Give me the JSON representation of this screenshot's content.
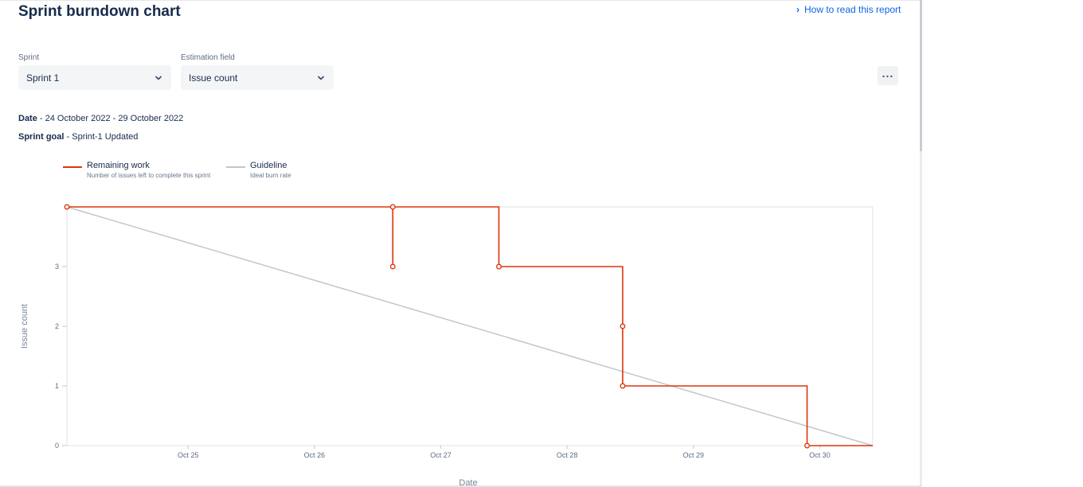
{
  "header": {
    "title": "Sprint burndown chart",
    "help_link": "How to read this report"
  },
  "filters": {
    "sprint_label": "Sprint",
    "sprint_value": "Sprint 1",
    "estimation_label": "Estimation field",
    "estimation_value": "Issue count",
    "more_icon": "more-horizontal-icon"
  },
  "meta": {
    "date_label": "Date",
    "date_value": "24 October 2022 - 29 October 2022",
    "goal_label": "Sprint goal",
    "goal_value": "Sprint-1 Updated"
  },
  "legend": [
    {
      "name": "Remaining work",
      "sub": "Number of issues left to complete this sprint",
      "color": "#de350b"
    },
    {
      "name": "Guideline",
      "sub": "Ideal burn rate",
      "color": "#c1c7d0"
    }
  ],
  "chart_data": {
    "type": "line",
    "xlabel": "Date",
    "ylabel": "Issue count",
    "x_ticks": [
      "Oct 25",
      "Oct 26",
      "Oct 27",
      "Oct 28",
      "Oct 29",
      "Oct 30"
    ],
    "y_ticks": [
      0,
      1,
      2,
      3
    ],
    "xlim": [
      24.04,
      30.42
    ],
    "ylim": [
      0,
      4
    ],
    "grid": false,
    "legend_position": "top-left",
    "series": [
      {
        "name": "Remaining work",
        "color": "#de350b",
        "step": true,
        "points": [
          {
            "x": 24.04,
            "y": 4
          },
          {
            "x": 26.62,
            "y": 4
          },
          {
            "x": 26.62,
            "y": 3
          },
          {
            "x": 26.62,
            "y": 4
          },
          {
            "x": 27.46,
            "y": 4
          },
          {
            "x": 27.46,
            "y": 3
          },
          {
            "x": 28.44,
            "y": 3
          },
          {
            "x": 28.44,
            "y": 2
          },
          {
            "x": 28.44,
            "y": 1
          },
          {
            "x": 29.9,
            "y": 1
          },
          {
            "x": 29.9,
            "y": 0
          },
          {
            "x": 30.42,
            "y": 0
          }
        ],
        "markers": [
          {
            "x": 24.04,
            "y": 4
          },
          {
            "x": 26.62,
            "y": 4
          },
          {
            "x": 26.62,
            "y": 3
          },
          {
            "x": 27.46,
            "y": 3
          },
          {
            "x": 28.44,
            "y": 2
          },
          {
            "x": 28.44,
            "y": 1
          },
          {
            "x": 29.9,
            "y": 0
          }
        ]
      },
      {
        "name": "Guideline",
        "color": "#c1c7d0",
        "points": [
          {
            "x": 24.04,
            "y": 4
          },
          {
            "x": 30.42,
            "y": 0
          }
        ]
      }
    ]
  }
}
